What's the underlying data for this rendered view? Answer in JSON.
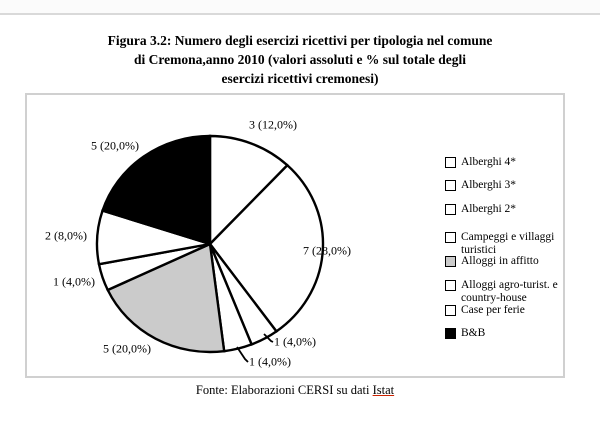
{
  "page": {
    "title_lines": [
      "Figura 3.2: Numero degli esercizi ricettivi per tipologia nel comune",
      "di Cremona,anno 2010 (valori assoluti e % sul totale degli",
      "esercizi ricettivi cremonesi)"
    ],
    "footer": {
      "prefix": "Fonte: Elaborazioni CERSI su dati ",
      "link": "Istat"
    }
  },
  "chart_data": {
    "type": "pie",
    "title": "Numero degli esercizi ricettivi per tipologia nel comune di Cremona, anno 2010",
    "total": 25,
    "start_angle": "top",
    "direction": "clockwise",
    "legend_position": "right",
    "outline_color": "#000000",
    "slices": [
      {
        "label": "Alberghi 4*",
        "value": 3,
        "percent": 12.0,
        "data_label": "3 (12,0%)",
        "color": "#ffffff"
      },
      {
        "label": "Alberghi 3*",
        "value": 7,
        "percent": 28.0,
        "data_label": "7 (28,0%)",
        "color": "#ffffff"
      },
      {
        "label": "Alberghi 2*",
        "value": 1,
        "percent": 4.0,
        "data_label": "1 (4,0%)",
        "color": "#ffffff"
      },
      {
        "label": "Campeggi e villaggi\nturistici",
        "value": 1,
        "percent": 4.0,
        "data_label": "1 (4,0%)",
        "color": "#ffffff"
      },
      {
        "label": "Alloggi in affitto",
        "value": 5,
        "percent": 20.0,
        "data_label": "5 (20,0%)",
        "color": "#cbcbcb"
      },
      {
        "label": "Alloggi agro-turist. e\ncountry-house",
        "value": 1,
        "percent": 4.0,
        "data_label": "1 (4,0%)",
        "color": "#ffffff"
      },
      {
        "label": "Case per ferie",
        "value": 2,
        "percent": 8.0,
        "data_label": "2 (8,0%)",
        "color": "#ffffff"
      },
      {
        "label": "B&B",
        "value": 5,
        "percent": 20.0,
        "data_label": "5 (20,0%)",
        "color": "#000000"
      }
    ]
  }
}
